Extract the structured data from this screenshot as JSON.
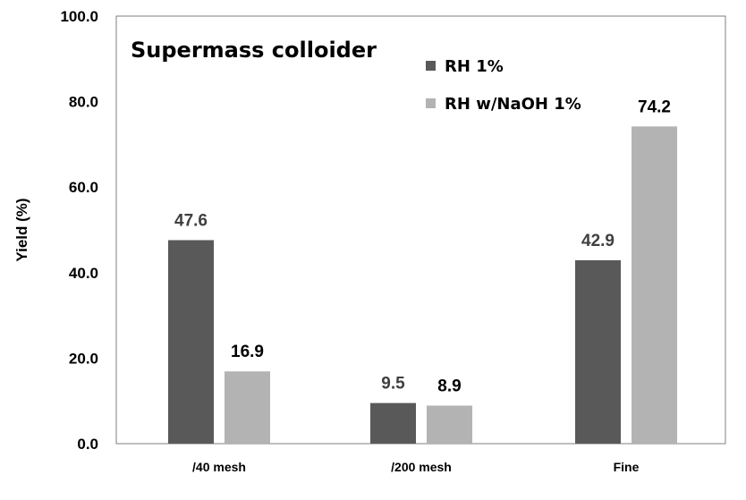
{
  "chart_data": {
    "type": "bar",
    "title": "Supermass colloider",
    "ylabel": "Yield (%)",
    "xlabel": "",
    "categories": [
      "/40 mesh",
      "/200 mesh",
      "Fine"
    ],
    "series": [
      {
        "name": "RH 1%",
        "values": [
          47.6,
          9.5,
          42.9
        ],
        "color": "#595959",
        "label_color": "#404040"
      },
      {
        "name": "RH w/NaOH 1%",
        "values": [
          16.9,
          8.9,
          74.2
        ],
        "color": "#b3b3b3",
        "label_color": "#000000"
      }
    ],
    "value_labels": [
      [
        "47.6",
        "9.5",
        "42.9"
      ],
      [
        "16.9",
        "8.9",
        "74.2"
      ]
    ],
    "ylim": [
      0,
      100
    ],
    "yticks": [
      0,
      20,
      40,
      60,
      80,
      100
    ],
    "ytick_labels": [
      "0.0",
      "20.0",
      "40.0",
      "60.0",
      "80.0",
      "100.0"
    ],
    "grid": false,
    "legend_position": "top-right-inside"
  }
}
